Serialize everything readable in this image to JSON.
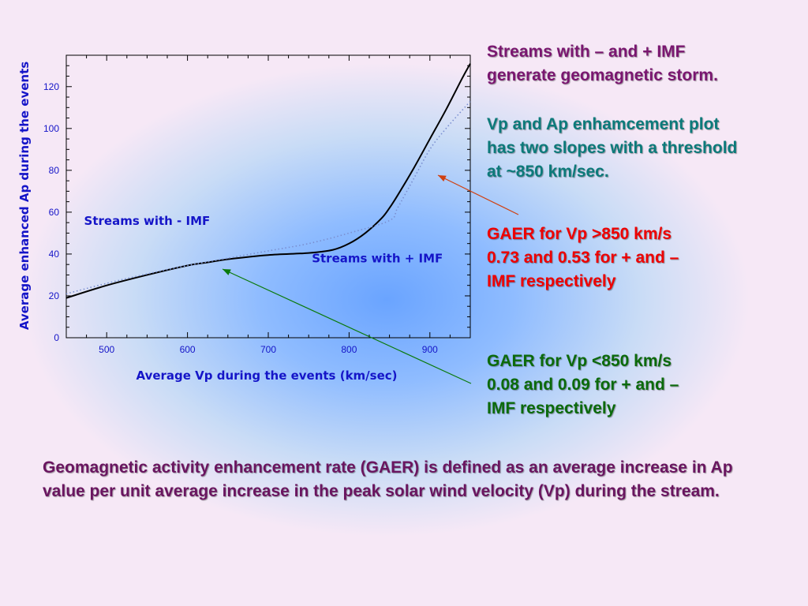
{
  "text": {
    "note1": "Streams with – and + IMF\ngenerate geomagnetic storm.",
    "note2": "Vp and Ap enhamcement plot\nhas two slopes with a threshold\nat ~850 km/sec.",
    "note3": "GAER for  Vp >850 km/s\n0.73 and 0.53  for  + and –\nIMF respectively",
    "note4": "GAER for  Vp <850 km/s\n0.08 and 0.09  for  + and –\nIMF respectively",
    "definition": "Geomagnetic activity enhancement rate (GAER) is defined as an average increase in Ap value per unit average increase in the peak solar wind velocity (Vp) during the stream."
  },
  "colors": {
    "axis_label": "#1515c8",
    "curve_plus": "#000000",
    "curve_minus": "#7a8fd0",
    "arrow_red": "#d04010",
    "arrow_green": "#0a7a0a"
  },
  "chart_data": {
    "type": "line",
    "xlabel": "Average Vp during the events (km/sec)",
    "ylabel": "Average enhanced Ap during the events",
    "xlim": [
      450,
      950
    ],
    "ylim": [
      0,
      135
    ],
    "xticks": [
      500,
      600,
      700,
      800,
      900
    ],
    "yticks": [
      0,
      20,
      40,
      60,
      80,
      100,
      120
    ],
    "series": [
      {
        "name": "Streams with + IMF",
        "style": "solid",
        "x": [
          450,
          500,
          550,
          600,
          625,
          650,
          700,
          750,
          780,
          800,
          820,
          840,
          850,
          860,
          880,
          900,
          920,
          940,
          950
        ],
        "y": [
          19,
          25,
          30,
          34.5,
          36,
          37.5,
          39.5,
          40.5,
          42,
          45,
          50,
          57,
          62,
          68,
          81,
          95,
          109,
          124,
          131
        ]
      },
      {
        "name": "Streams with - IMF",
        "style": "dotted",
        "x": [
          450,
          500,
          550,
          600,
          650,
          700,
          750,
          800,
          850,
          860,
          880,
          900,
          920,
          950
        ],
        "y": [
          21,
          26,
          30.5,
          34.5,
          38,
          41.5,
          45,
          50,
          56,
          62,
          76,
          90,
          100,
          113
        ]
      }
    ],
    "annotations": [
      {
        "text": "Streams with - IMF",
        "x": 550,
        "y": 54
      },
      {
        "text": "Streams with + IMF",
        "x": 835,
        "y": 36
      }
    ]
  }
}
